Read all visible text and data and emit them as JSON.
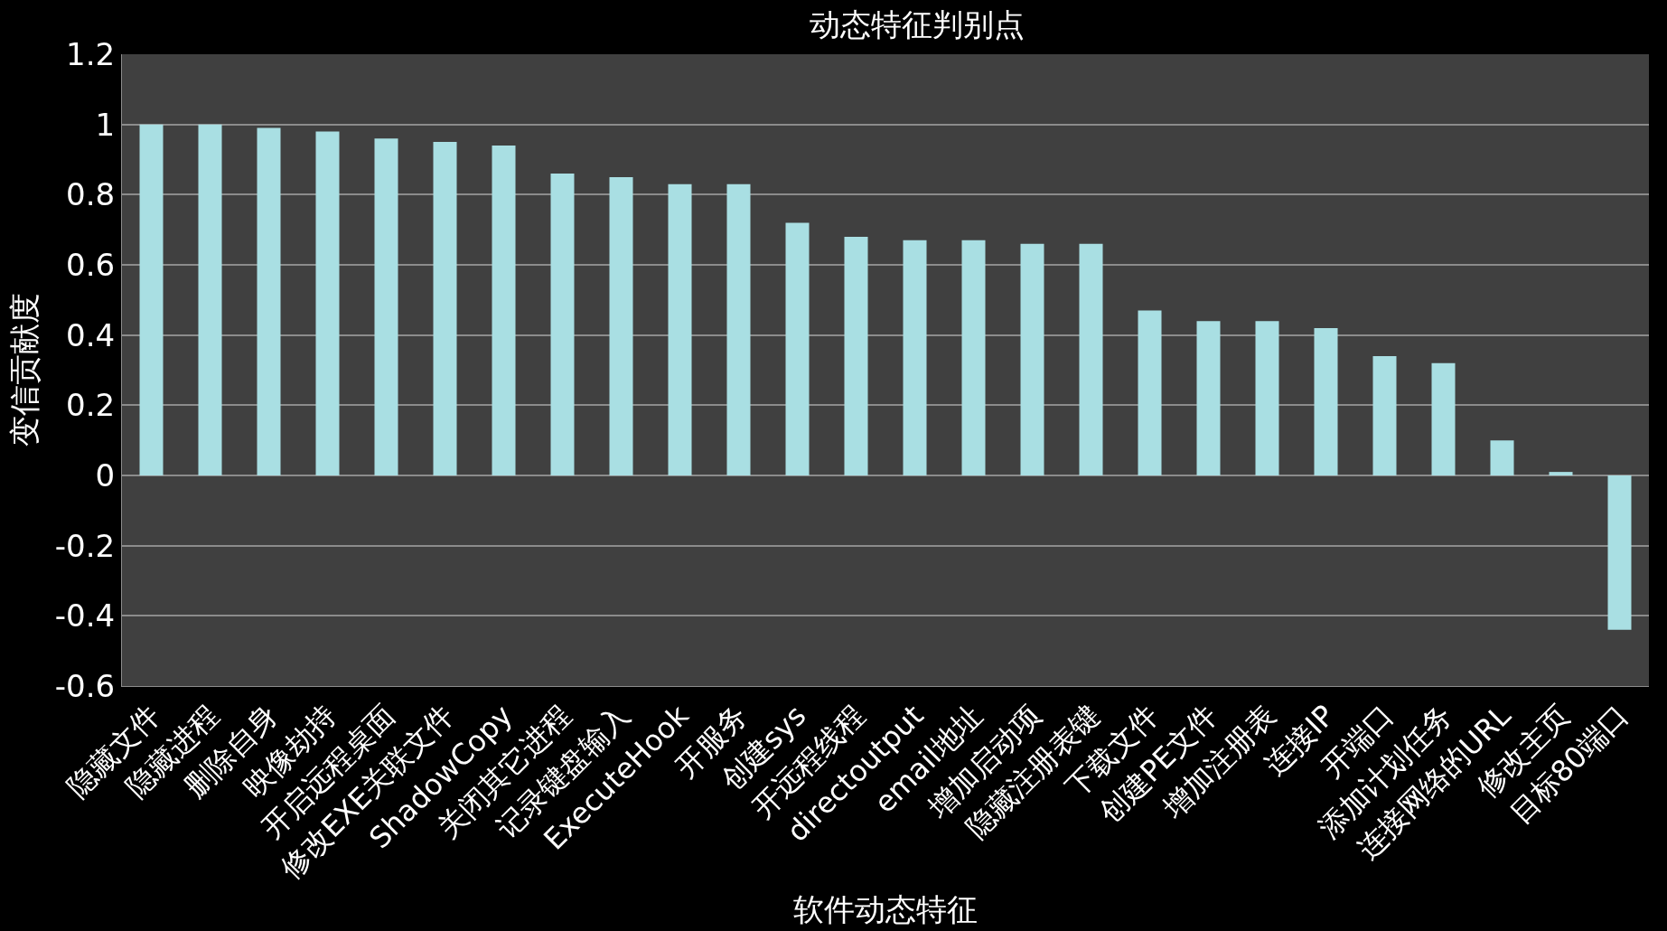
{
  "chart_data": {
    "type": "bar",
    "title": "动态特征判别点",
    "xlabel": "软件动态特征",
    "ylabel": "变信贡献度",
    "categories": [
      "隐藏文件",
      "隐藏进程",
      "删除自身",
      "映像劫持",
      "开启远程桌面",
      "修改EXE关联文件",
      "ShadowCopy",
      "关闭其它进程",
      "记录键盘输入",
      "ExecuteHook",
      "开服务",
      "创建sys",
      "开远程线程",
      "directoutput",
      "email地址",
      "增加启动项",
      "隐藏注册表键",
      "下载文件",
      "创建PE文件",
      "增加注册表",
      "连接IP",
      "开端口",
      "添加计划任务",
      "连接网络的URL",
      "修改主页",
      "目标80端口"
    ],
    "values": [
      1.0,
      1.0,
      0.99,
      0.98,
      0.96,
      0.95,
      0.94,
      0.86,
      0.85,
      0.83,
      0.83,
      0.72,
      0.68,
      0.67,
      0.67,
      0.66,
      0.66,
      0.47,
      0.44,
      0.44,
      0.42,
      0.34,
      0.32,
      0.1,
      0.01,
      -0.44
    ],
    "color": "#a9dfe3",
    "ylim": [
      -0.6,
      1.2
    ],
    "yticks": [
      -0.6,
      -0.4,
      -0.2,
      0,
      0.2,
      0.4,
      0.6,
      0.8,
      1,
      1.2
    ],
    "grid": "y"
  }
}
